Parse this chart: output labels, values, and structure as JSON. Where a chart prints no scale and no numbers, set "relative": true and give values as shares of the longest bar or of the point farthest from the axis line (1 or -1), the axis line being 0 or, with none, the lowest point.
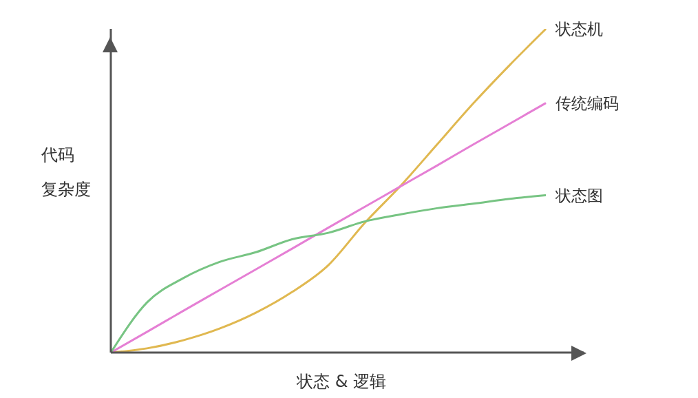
{
  "chart_data": {
    "type": "line",
    "relative": true,
    "xlabel": "状态 & 逻辑",
    "ylabel": "代码复杂度",
    "categories": [
      null,
      null,
      null,
      null,
      null,
      null,
      null,
      null,
      null,
      null,
      null,
      null,
      null
    ],
    "legend": false,
    "marker": "none",
    "line_style": "solid",
    "grid": false,
    "series": [
      {
        "name": "状态机",
        "color": "#e0b850",
        "values": [
          0,
          0.013,
          0.038,
          0.074,
          0.123,
          0.187,
          0.27,
          0.4,
          0.516,
          0.643,
          0.77,
          0.888,
          1
        ]
      },
      {
        "name": "传统编码",
        "color": "#e57fd4",
        "values": [
          0,
          0.064,
          0.129,
          0.193,
          0.257,
          0.321,
          0.386,
          0.45,
          0.514,
          0.578,
          0.643,
          0.707,
          0.771
        ]
      },
      {
        "name": "状态图",
        "color": "#77c483",
        "values": [
          0,
          0.155,
          0.23,
          0.28,
          0.31,
          0.35,
          0.37,
          0.405,
          0.427,
          0.446,
          0.46,
          0.475,
          0.486
        ]
      }
    ]
  }
}
